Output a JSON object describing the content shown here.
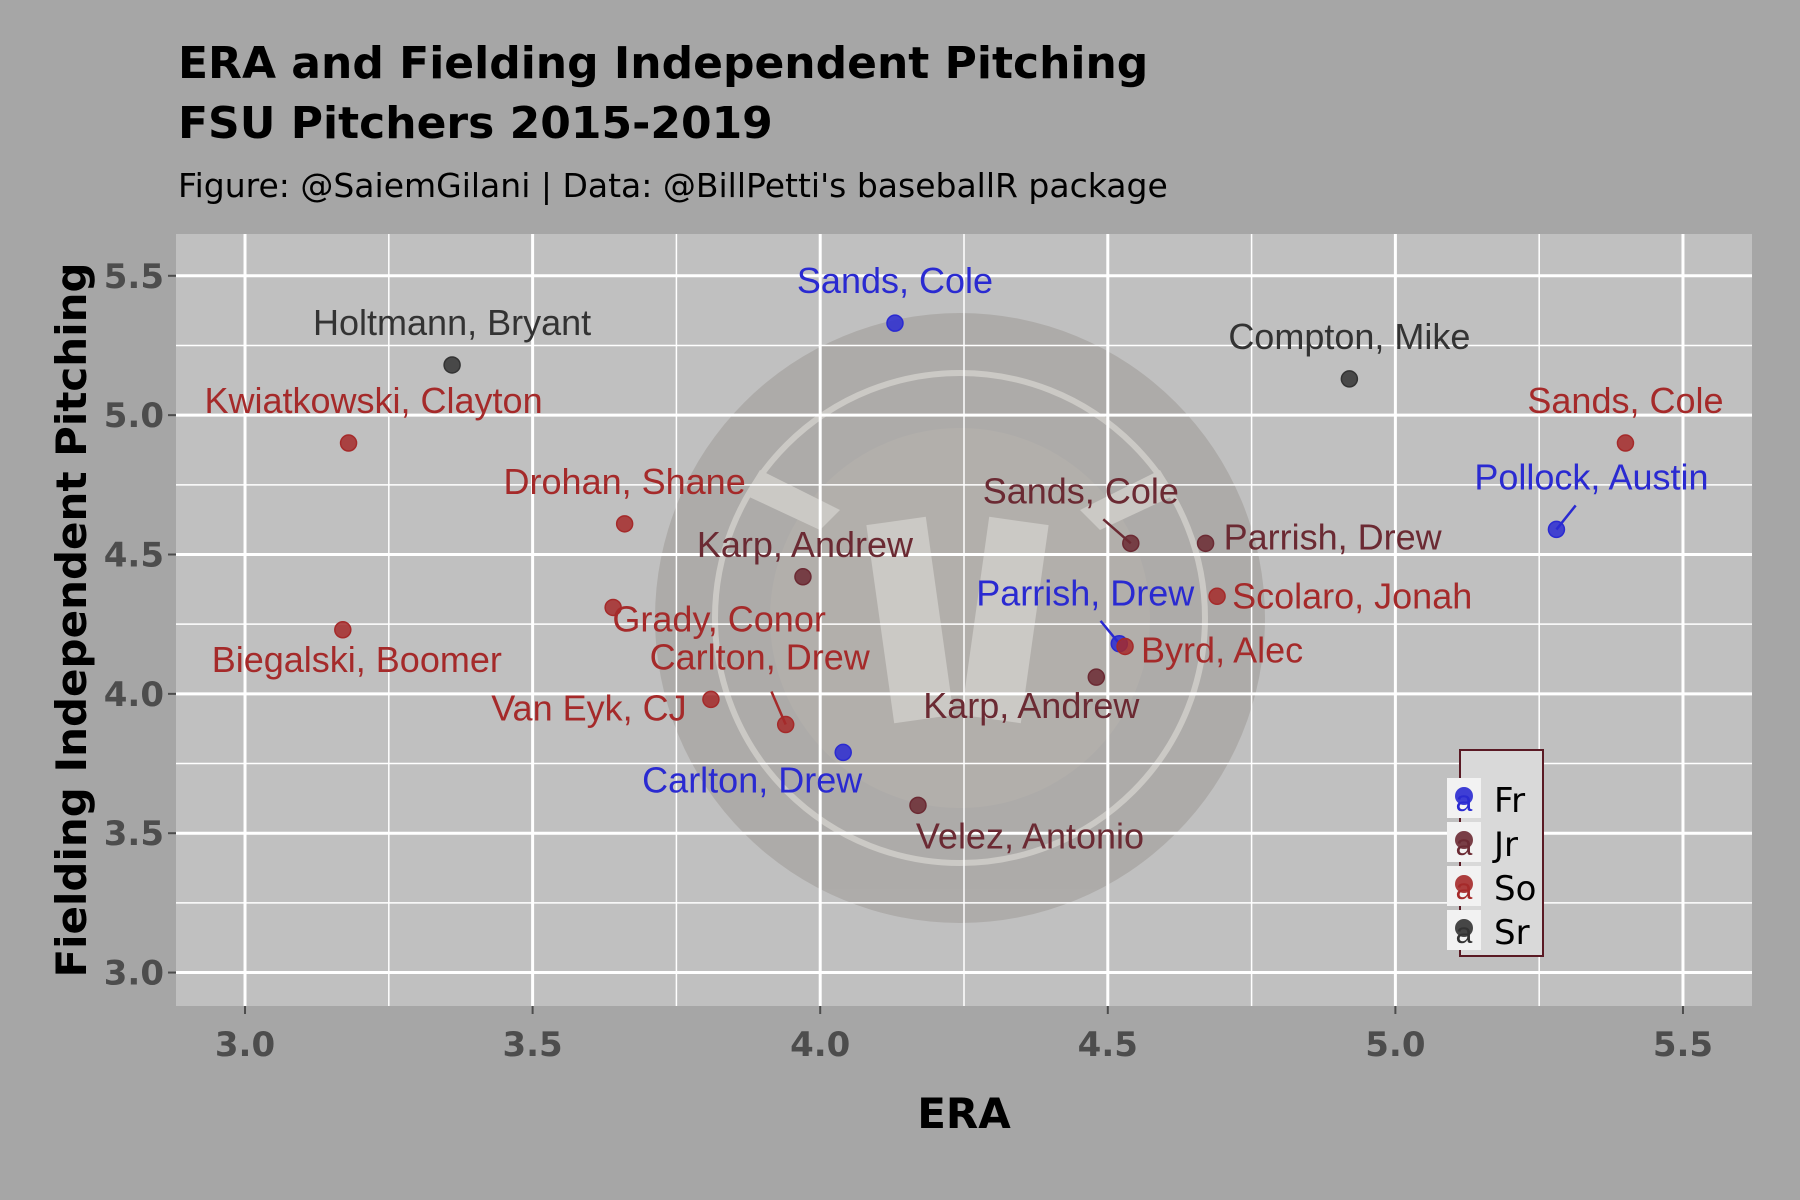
{
  "title_lines": [
    "ERA and Fielding Independent Pitching",
    "FSU Pitchers 2015-2019"
  ],
  "subtitle": "Figure: @SaiemGilani | Data: @BillPetti's baseballR package",
  "class_colors": {
    "Fr": "#2a2ad1",
    "Jr": "#6b2a33",
    "So": "#a52a2a",
    "Sr": "#333333"
  },
  "chart_data": {
    "type": "scatter",
    "xlabel": "ERA",
    "ylabel": "Fielding Independent Pitching",
    "xlim": [
      2.88,
      5.62
    ],
    "ylim": [
      2.88,
      5.65
    ],
    "x_ticks": [
      3.0,
      3.5,
      4.0,
      4.5,
      5.0,
      5.5
    ],
    "x_tick_labels": [
      "3.0",
      "3.5",
      "4.0",
      "4.5",
      "5.0",
      "5.5"
    ],
    "y_ticks": [
      3.0,
      3.5,
      4.0,
      4.5,
      5.0,
      5.5
    ],
    "y_tick_labels": [
      "3.0",
      "3.5",
      "4.0",
      "4.5",
      "5.0",
      "5.5"
    ],
    "grid": true,
    "legend": {
      "placement": "bottom-right",
      "entries": [
        "Fr",
        "Jr",
        "So",
        "Sr"
      ],
      "key_glyph": "a"
    },
    "points": [
      {
        "name": "Holtmann, Bryant",
        "class": "Sr",
        "x": 3.36,
        "y": 5.18
      },
      {
        "name": "Compton, Mike",
        "class": "Sr",
        "x": 4.92,
        "y": 5.13
      },
      {
        "name": "Sands, Cole",
        "class": "Fr",
        "x": 4.13,
        "y": 5.33
      },
      {
        "name": "Kwiatkowski, Clayton",
        "class": "So",
        "x": 3.18,
        "y": 4.9
      },
      {
        "name": "Sands, Cole",
        "class": "So",
        "x": 5.4,
        "y": 4.9
      },
      {
        "name": "Drohan, Shane",
        "class": "So",
        "x": 3.66,
        "y": 4.61
      },
      {
        "name": "Pollock, Austin",
        "class": "Fr",
        "x": 5.28,
        "y": 4.59
      },
      {
        "name": "Sands, Cole",
        "class": "Jr",
        "x": 4.54,
        "y": 4.54
      },
      {
        "name": "Parrish, Drew",
        "class": "Jr",
        "x": 4.67,
        "y": 4.54
      },
      {
        "name": "Karp, Andrew",
        "class": "Jr",
        "x": 3.97,
        "y": 4.42
      },
      {
        "name": "Scolaro, Jonah",
        "class": "So",
        "x": 4.69,
        "y": 4.35
      },
      {
        "name": "Grady, Conor",
        "class": "So",
        "x": 3.64,
        "y": 4.31
      },
      {
        "name": "Biegalski, Boomer",
        "class": "So",
        "x": 3.17,
        "y": 4.23
      },
      {
        "name": "Parrish, Drew",
        "class": "Fr",
        "x": 4.52,
        "y": 4.18
      },
      {
        "name": "Byrd, Alec",
        "class": "So",
        "x": 4.53,
        "y": 4.17
      },
      {
        "name": "Karp, Andrew",
        "class": "Jr",
        "x": 4.48,
        "y": 4.06
      },
      {
        "name": "Van Eyk, CJ",
        "class": "So",
        "x": 3.81,
        "y": 3.98
      },
      {
        "name": "Carlton, Drew",
        "class": "So",
        "x": 3.94,
        "y": 3.89
      },
      {
        "name": "Carlton, Drew",
        "class": "Fr",
        "x": 4.04,
        "y": 3.79
      },
      {
        "name": "Velez, Antonio",
        "class": "Jr",
        "x": 4.17,
        "y": 3.6
      }
    ]
  }
}
